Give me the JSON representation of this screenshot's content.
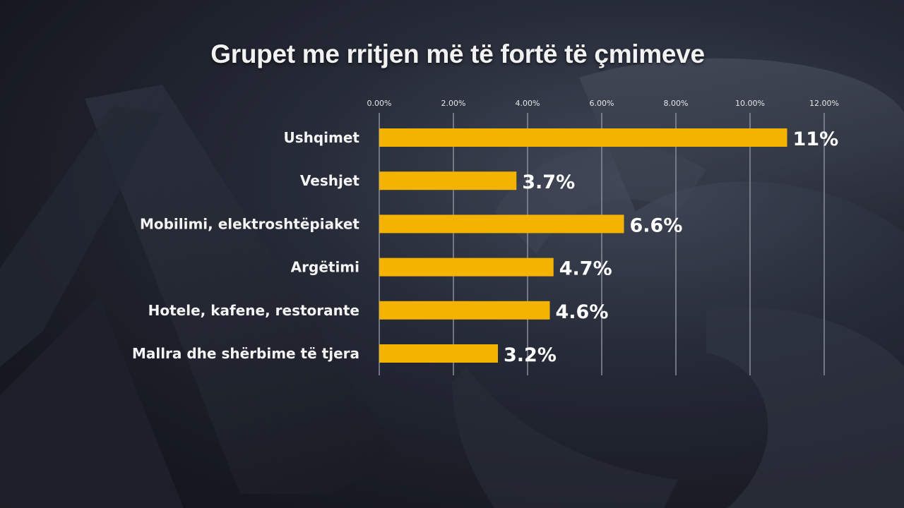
{
  "chart_data": {
    "type": "bar",
    "orientation": "horizontal",
    "title": "Grupet me rritjen më të fortë të çmimeve",
    "categories": [
      "Ushqimet",
      "Veshjet",
      "Mobilimi, elektroshtëpiaket",
      "Argëtimi",
      "Hotele, kafene, restorante",
      "Mallra dhe shërbime të tjera"
    ],
    "values": [
      11.0,
      3.7,
      6.6,
      4.7,
      4.6,
      3.2
    ],
    "value_labels": [
      "11%",
      "3.7%",
      "6.6%",
      "4.7%",
      "4.6%",
      "3.2%"
    ],
    "xlim": [
      0,
      12
    ],
    "x_ticks": [
      0,
      2,
      4,
      6,
      8,
      10,
      12
    ],
    "x_tick_labels": [
      "0.00%",
      "2.00%",
      "4.00%",
      "6.00%",
      "8.00%",
      "10.00%",
      "12.00%"
    ],
    "axis_position": "top",
    "grid": true,
    "legend": "none",
    "bar_color": "#f3b300",
    "grid_color": "#8a8f9a"
  }
}
